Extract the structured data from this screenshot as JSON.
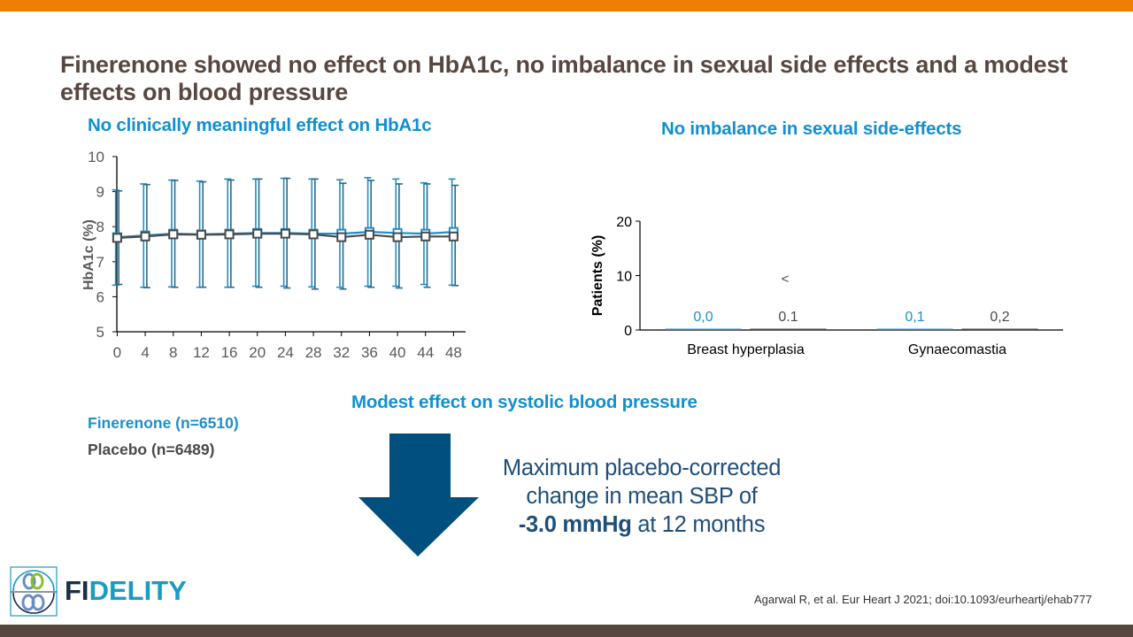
{
  "slide": {
    "title": "Finerenone showed no effect on HbA1c, no imbalance in sexual side effects and a modest effects on blood pressure",
    "colors": {
      "accent_top_bar": "#ee7f00",
      "bottom_bar": "#574740",
      "title_text": "#574740",
      "subheading_blue": "#0f90d0",
      "finerenone": "#1f8fc8",
      "placebo": "#4a4a4a",
      "arrow": "#004f7f"
    }
  },
  "hba1c_panel": {
    "heading": "No clinically meaningful effect on HbA1c"
  },
  "sexual_panel": {
    "heading": "No imbalance in sexual side-effects",
    "annotation": "<"
  },
  "bp_panel": {
    "heading": "Modest effect on systolic blood pressure",
    "line1": "Maximum placebo-corrected",
    "line2": "change in mean SBP of",
    "value": "-3.0 mmHg",
    "suffix": " at 12 months",
    "icon": "down-arrow-icon"
  },
  "legend": {
    "finerenone": "Finerenone (n=6510)",
    "placebo": "Placebo (n=6489)"
  },
  "footer": {
    "citation": "Agarwal R, et al. Eur Heart J 2021; doi:10.1093/eurheartj/ehab777",
    "logo_fi": "FI",
    "logo_rest": "DELITY"
  },
  "chart_data": [
    {
      "type": "line",
      "title": "No clinically meaningful effect on HbA1c",
      "xlabel": "",
      "ylabel": "HbA1c (%)",
      "ylim": [
        5,
        10
      ],
      "yticks": [
        "5",
        "6",
        "7",
        "8",
        "9",
        "10"
      ],
      "x": [
        0,
        4,
        8,
        12,
        16,
        20,
        24,
        28,
        32,
        36,
        40,
        44,
        48
      ],
      "xticks": [
        "0",
        "4",
        "8",
        "12",
        "16",
        "20",
        "24",
        "28",
        "32",
        "36",
        "40",
        "44",
        "48"
      ],
      "grid": false,
      "series": [
        {
          "name": "Finerenone (n=6510)",
          "values": [
            7.7,
            7.75,
            7.8,
            7.78,
            7.8,
            7.82,
            7.82,
            7.8,
            7.8,
            7.85,
            7.82,
            7.8,
            7.85
          ],
          "err_upper": [
            9.05,
            9.22,
            9.33,
            9.3,
            9.36,
            9.36,
            9.38,
            9.36,
            9.34,
            9.4,
            9.36,
            9.25,
            9.36
          ],
          "err_lower": [
            6.33,
            6.27,
            6.28,
            6.27,
            6.27,
            6.3,
            6.3,
            6.28,
            6.27,
            6.3,
            6.3,
            6.35,
            6.33
          ]
        },
        {
          "name": "Placebo (n=6489)",
          "values": [
            7.68,
            7.72,
            7.78,
            7.77,
            7.78,
            7.8,
            7.8,
            7.78,
            7.7,
            7.77,
            7.7,
            7.72,
            7.72
          ],
          "err_upper": [
            9.02,
            9.2,
            9.32,
            9.28,
            9.33,
            9.36,
            9.38,
            9.36,
            9.24,
            9.32,
            9.22,
            9.22,
            9.18
          ],
          "err_lower": [
            6.35,
            6.26,
            6.27,
            6.27,
            6.27,
            6.27,
            6.25,
            6.22,
            6.22,
            6.27,
            6.25,
            6.27,
            6.32
          ]
        }
      ]
    },
    {
      "type": "bar",
      "title": "No imbalance in sexual side-effects",
      "ylabel": "Patients (%)",
      "ylim": [
        0,
        20
      ],
      "yticks": [
        "0",
        "10",
        "20"
      ],
      "categories": [
        "Breast hyperplasia",
        "Gynaecomastia"
      ],
      "series": [
        {
          "name": "Finerenone",
          "values": [
            0.0,
            0.1
          ],
          "labels": [
            "0,0",
            "0,1"
          ]
        },
        {
          "name": "Placebo",
          "values": [
            0.1,
            0.2
          ],
          "labels": [
            "0.1",
            "0,2"
          ]
        }
      ]
    }
  ]
}
